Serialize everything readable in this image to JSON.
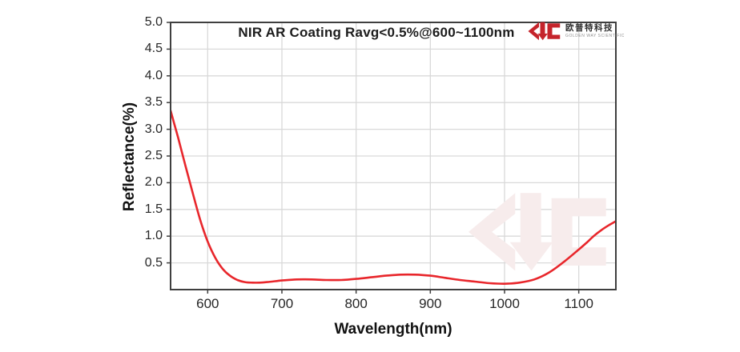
{
  "header": {
    "logo": {
      "company_name": "欧普特科技",
      "company_subtitle": "GOLDEN WAY SCIENTIFIC",
      "logo_color": "#c5242b"
    }
  },
  "chart_data": {
    "type": "line",
    "title": "NIR AR Coating Ravg<0.5%@600~1100nm",
    "xlabel": "Wavelength(nm)",
    "ylabel": "Reflectance(%)",
    "xlim": [
      550,
      1150
    ],
    "ylim": [
      0,
      5
    ],
    "x_ticks": [
      600,
      700,
      800,
      900,
      1000,
      1100
    ],
    "y_ticks": [
      0.5,
      1.0,
      1.5,
      2.0,
      2.5,
      3.0,
      3.5,
      4.0,
      4.5,
      5.0
    ],
    "grid": true,
    "legend_position": "none",
    "series": [
      {
        "name": "Reflectance",
        "color": "#e8262b",
        "x": [
          550,
          555,
          560,
          570,
          580,
          590,
          600,
          610,
          620,
          630,
          640,
          650,
          660,
          670,
          680,
          700,
          720,
          740,
          760,
          780,
          800,
          820,
          840,
          860,
          880,
          900,
          920,
          940,
          960,
          980,
          1000,
          1020,
          1040,
          1060,
          1080,
          1100,
          1110,
          1120,
          1130,
          1140,
          1150
        ],
        "y": [
          3.35,
          3.1,
          2.85,
          2.32,
          1.8,
          1.3,
          0.9,
          0.6,
          0.39,
          0.26,
          0.18,
          0.14,
          0.13,
          0.13,
          0.14,
          0.17,
          0.19,
          0.19,
          0.18,
          0.18,
          0.2,
          0.23,
          0.26,
          0.28,
          0.28,
          0.26,
          0.22,
          0.18,
          0.15,
          0.12,
          0.11,
          0.13,
          0.19,
          0.32,
          0.52,
          0.75,
          0.87,
          1.0,
          1.11,
          1.2,
          1.28
        ]
      }
    ],
    "colors": {
      "grid": "#d9d9d9",
      "plot_border": "#3f3f3f",
      "watermark": "#f7ecec",
      "background": "#ffffff"
    }
  }
}
